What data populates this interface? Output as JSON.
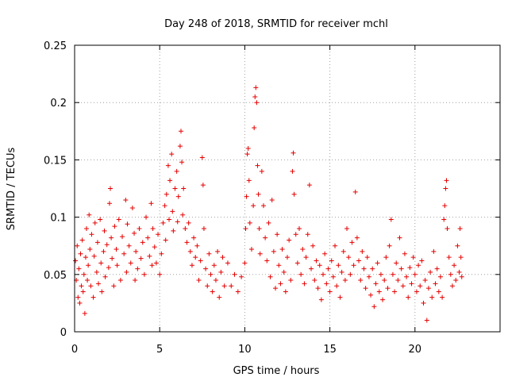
{
  "chart_data": {
    "type": "scatter",
    "title": "Day 248 of 2018, SRMTID for receiver mchl",
    "xlabel": "GPS time / hours",
    "ylabel": "SRMTID / TECUs",
    "xlim": [
      0,
      25
    ],
    "ylim": [
      0,
      0.25
    ],
    "x_ticks": [
      0,
      5,
      10,
      15,
      20
    ],
    "x_tick_labels": [
      "0",
      "5",
      "10",
      "15",
      "20"
    ],
    "y_ticks": [
      0,
      0.05,
      0.1,
      0.15,
      0.2,
      0.25
    ],
    "y_tick_labels": [
      "0",
      "0.05",
      "0.1",
      "0.15",
      "0.2",
      "0.25"
    ],
    "grid": true,
    "marker": "+",
    "color": "#e60000",
    "series": [
      {
        "name": "SRMTID",
        "points": [
          [
            0.05,
            0.062
          ],
          [
            0.1,
            0.045
          ],
          [
            0.15,
            0.075
          ],
          [
            0.2,
            0.03
          ],
          [
            0.25,
            0.055
          ],
          [
            0.3,
            0.025
          ],
          [
            0.35,
            0.068
          ],
          [
            0.4,
            0.04
          ],
          [
            0.45,
            0.08
          ],
          [
            0.5,
            0.035
          ],
          [
            0.55,
            0.05
          ],
          [
            0.6,
            0.016
          ],
          [
            0.65,
            0.065
          ],
          [
            0.7,
            0.09
          ],
          [
            0.75,
            0.045
          ],
          [
            0.8,
            0.058
          ],
          [
            0.85,
            0.102
          ],
          [
            0.9,
            0.072
          ],
          [
            0.95,
            0.04
          ],
          [
            1.0,
            0.085
          ],
          [
            1.1,
            0.03
          ],
          [
            1.15,
            0.066
          ],
          [
            1.2,
            0.095
          ],
          [
            1.3,
            0.052
          ],
          [
            1.35,
            0.078
          ],
          [
            1.4,
            0.042
          ],
          [
            1.5,
            0.098
          ],
          [
            1.55,
            0.06
          ],
          [
            1.6,
            0.035
          ],
          [
            1.7,
            0.07
          ],
          [
            1.75,
            0.088
          ],
          [
            1.8,
            0.048
          ],
          [
            1.9,
            0.076
          ],
          [
            2.0,
            0.056
          ],
          [
            2.05,
            0.112
          ],
          [
            2.1,
            0.125
          ],
          [
            2.15,
            0.082
          ],
          [
            2.2,
            0.064
          ],
          [
            2.3,
            0.04
          ],
          [
            2.35,
            0.092
          ],
          [
            2.45,
            0.072
          ],
          [
            2.5,
            0.058
          ],
          [
            2.6,
            0.098
          ],
          [
            2.7,
            0.045
          ],
          [
            2.8,
            0.083
          ],
          [
            2.9,
            0.068
          ],
          [
            3.0,
            0.115
          ],
          [
            3.05,
            0.052
          ],
          [
            3.1,
            0.094
          ],
          [
            3.2,
            0.075
          ],
          [
            3.3,
            0.06
          ],
          [
            3.4,
            0.108
          ],
          [
            3.5,
            0.086
          ],
          [
            3.55,
            0.045
          ],
          [
            3.6,
            0.07
          ],
          [
            3.7,
            0.055
          ],
          [
            3.8,
            0.09
          ],
          [
            3.9,
            0.064
          ],
          [
            4.0,
            0.078
          ],
          [
            4.1,
            0.05
          ],
          [
            4.2,
            0.1
          ],
          [
            4.3,
            0.082
          ],
          [
            4.4,
            0.066
          ],
          [
            4.5,
            0.112
          ],
          [
            4.55,
            0.058
          ],
          [
            4.6,
            0.09
          ],
          [
            4.7,
            0.074
          ],
          [
            4.8,
            0.06
          ],
          [
            4.9,
            0.085
          ],
          [
            5.0,
            0.05
          ],
          [
            5.1,
            0.068
          ],
          [
            5.2,
            0.095
          ],
          [
            5.3,
            0.11
          ],
          [
            5.35,
            0.08
          ],
          [
            5.4,
            0.12
          ],
          [
            5.5,
            0.145
          ],
          [
            5.55,
            0.098
          ],
          [
            5.6,
            0.132
          ],
          [
            5.7,
            0.155
          ],
          [
            5.75,
            0.105
          ],
          [
            5.8,
            0.088
          ],
          [
            5.9,
            0.125
          ],
          [
            6.0,
            0.14
          ],
          [
            6.05,
            0.096
          ],
          [
            6.1,
            0.118
          ],
          [
            6.2,
            0.162
          ],
          [
            6.25,
            0.175
          ],
          [
            6.3,
            0.148
          ],
          [
            6.35,
            0.102
          ],
          [
            6.4,
            0.125
          ],
          [
            6.5,
            0.09
          ],
          [
            6.6,
            0.078
          ],
          [
            6.7,
            0.095
          ],
          [
            6.8,
            0.07
          ],
          [
            6.9,
            0.058
          ],
          [
            7.0,
            0.082
          ],
          [
            7.1,
            0.065
          ],
          [
            7.2,
            0.075
          ],
          [
            7.3,
            0.045
          ],
          [
            7.4,
            0.062
          ],
          [
            7.5,
            0.152
          ],
          [
            7.55,
            0.128
          ],
          [
            7.6,
            0.09
          ],
          [
            7.7,
            0.055
          ],
          [
            7.8,
            0.04
          ],
          [
            7.9,
            0.068
          ],
          [
            8.0,
            0.05
          ],
          [
            8.1,
            0.035
          ],
          [
            8.2,
            0.058
          ],
          [
            8.3,
            0.045
          ],
          [
            8.4,
            0.07
          ],
          [
            8.5,
            0.03
          ],
          [
            8.6,
            0.052
          ],
          [
            8.7,
            0.065
          ],
          [
            8.8,
            0.04
          ],
          [
            9.0,
            0.06
          ],
          [
            9.2,
            0.04
          ],
          [
            9.4,
            0.05
          ],
          [
            9.6,
            0.035
          ],
          [
            9.8,
            0.048
          ],
          [
            10.0,
            0.06
          ],
          [
            10.05,
            0.09
          ],
          [
            10.1,
            0.118
          ],
          [
            10.15,
            0.155
          ],
          [
            10.2,
            0.16
          ],
          [
            10.25,
            0.132
          ],
          [
            10.3,
            0.095
          ],
          [
            10.4,
            0.072
          ],
          [
            10.5,
            0.11
          ],
          [
            10.55,
            0.178
          ],
          [
            10.6,
            0.205
          ],
          [
            10.65,
            0.213
          ],
          [
            10.7,
            0.2
          ],
          [
            10.75,
            0.145
          ],
          [
            10.8,
            0.12
          ],
          [
            10.85,
            0.09
          ],
          [
            10.9,
            0.068
          ],
          [
            11.0,
            0.14
          ],
          [
            11.1,
            0.11
          ],
          [
            11.2,
            0.082
          ],
          [
            11.3,
            0.062
          ],
          [
            11.4,
            0.095
          ],
          [
            11.5,
            0.048
          ],
          [
            11.6,
            0.115
          ],
          [
            11.7,
            0.07
          ],
          [
            11.8,
            0.038
          ],
          [
            11.9,
            0.085
          ],
          [
            12.0,
            0.058
          ],
          [
            12.1,
            0.042
          ],
          [
            12.2,
            0.072
          ],
          [
            12.3,
            0.052
          ],
          [
            12.4,
            0.035
          ],
          [
            12.5,
            0.065
          ],
          [
            12.6,
            0.08
          ],
          [
            12.7,
            0.045
          ],
          [
            12.8,
            0.14
          ],
          [
            12.85,
            0.156
          ],
          [
            12.9,
            0.12
          ],
          [
            13.0,
            0.085
          ],
          [
            13.1,
            0.06
          ],
          [
            13.2,
            0.09
          ],
          [
            13.3,
            0.05
          ],
          [
            13.4,
            0.072
          ],
          [
            13.5,
            0.042
          ],
          [
            13.6,
            0.065
          ],
          [
            13.7,
            0.085
          ],
          [
            13.8,
            0.128
          ],
          [
            13.9,
            0.055
          ],
          [
            14.0,
            0.075
          ],
          [
            14.1,
            0.045
          ],
          [
            14.2,
            0.062
          ],
          [
            14.3,
            0.038
          ],
          [
            14.4,
            0.058
          ],
          [
            14.5,
            0.028
          ],
          [
            14.6,
            0.05
          ],
          [
            14.7,
            0.068
          ],
          [
            14.8,
            0.042
          ],
          [
            14.9,
            0.055
          ],
          [
            15.0,
            0.035
          ],
          [
            15.1,
            0.062
          ],
          [
            15.2,
            0.048
          ],
          [
            15.3,
            0.075
          ],
          [
            15.4,
            0.04
          ],
          [
            15.5,
            0.058
          ],
          [
            15.6,
            0.03
          ],
          [
            15.7,
            0.052
          ],
          [
            15.8,
            0.07
          ],
          [
            15.9,
            0.045
          ],
          [
            16.0,
            0.09
          ],
          [
            16.1,
            0.065
          ],
          [
            16.2,
            0.05
          ],
          [
            16.3,
            0.078
          ],
          [
            16.4,
            0.058
          ],
          [
            16.5,
            0.122
          ],
          [
            16.6,
            0.082
          ],
          [
            16.7,
            0.062
          ],
          [
            16.8,
            0.045
          ],
          [
            16.9,
            0.07
          ],
          [
            17.0,
            0.055
          ],
          [
            17.1,
            0.038
          ],
          [
            17.2,
            0.065
          ],
          [
            17.3,
            0.048
          ],
          [
            17.4,
            0.032
          ],
          [
            17.5,
            0.055
          ],
          [
            17.6,
            0.022
          ],
          [
            17.7,
            0.042
          ],
          [
            17.8,
            0.06
          ],
          [
            17.9,
            0.035
          ],
          [
            18.0,
            0.05
          ],
          [
            18.1,
            0.028
          ],
          [
            18.2,
            0.045
          ],
          [
            18.3,
            0.065
          ],
          [
            18.4,
            0.038
          ],
          [
            18.5,
            0.075
          ],
          [
            18.6,
            0.098
          ],
          [
            18.7,
            0.05
          ],
          [
            18.8,
            0.035
          ],
          [
            18.9,
            0.06
          ],
          [
            19.0,
            0.045
          ],
          [
            19.1,
            0.082
          ],
          [
            19.2,
            0.055
          ],
          [
            19.3,
            0.04
          ],
          [
            19.4,
            0.068
          ],
          [
            19.5,
            0.048
          ],
          [
            19.6,
            0.03
          ],
          [
            19.7,
            0.056
          ],
          [
            19.8,
            0.042
          ],
          [
            19.9,
            0.065
          ],
          [
            20.0,
            0.05
          ],
          [
            20.1,
            0.035
          ],
          [
            20.2,
            0.058
          ],
          [
            20.3,
            0.04
          ],
          [
            20.4,
            0.062
          ],
          [
            20.5,
            0.025
          ],
          [
            20.6,
            0.045
          ],
          [
            20.7,
            0.01
          ],
          [
            20.8,
            0.038
          ],
          [
            20.9,
            0.052
          ],
          [
            21.0,
            0.03
          ],
          [
            21.1,
            0.07
          ],
          [
            21.2,
            0.042
          ],
          [
            21.3,
            0.055
          ],
          [
            21.4,
            0.035
          ],
          [
            21.5,
            0.048
          ],
          [
            21.6,
            0.03
          ],
          [
            21.7,
            0.098
          ],
          [
            21.75,
            0.11
          ],
          [
            21.8,
            0.125
          ],
          [
            21.85,
            0.132
          ],
          [
            21.9,
            0.09
          ],
          [
            22.0,
            0.065
          ],
          [
            22.1,
            0.05
          ],
          [
            22.2,
            0.04
          ],
          [
            22.3,
            0.058
          ],
          [
            22.4,
            0.045
          ],
          [
            22.5,
            0.075
          ],
          [
            22.6,
            0.052
          ],
          [
            22.65,
            0.09
          ],
          [
            22.7,
            0.065
          ],
          [
            22.75,
            0.048
          ]
        ]
      }
    ]
  }
}
